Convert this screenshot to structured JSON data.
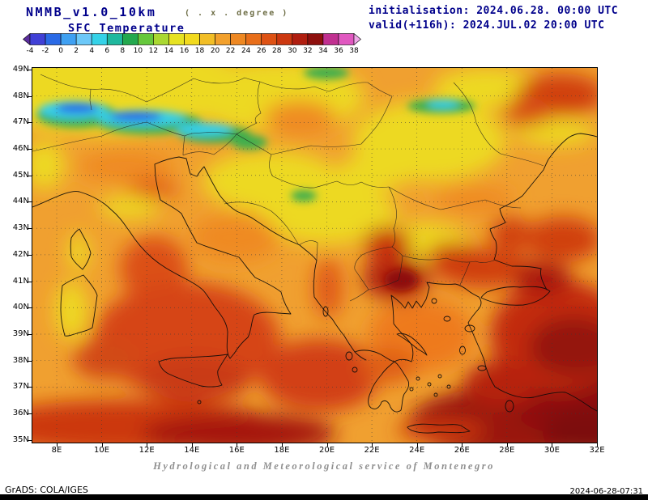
{
  "header": {
    "model": "NMMB_v1.0_10km",
    "grid_note": "( . x . degree )",
    "field": "SFC Temperature",
    "init_line": "initialisation: 2024.06.28. 00:00 UTC",
    "valid_line": "valid(+116h): 2024.JUL.02 20:00 UTC"
  },
  "colorbar": {
    "tick_labels": [
      "-4",
      "-2",
      "0",
      "2",
      "4",
      "6",
      "8",
      "10",
      "12",
      "14",
      "16",
      "18",
      "20",
      "22",
      "24",
      "26",
      "28",
      "30",
      "32",
      "34",
      "36",
      "38"
    ],
    "colors": [
      "#5b2d9e",
      "#4040d6",
      "#2a6ae6",
      "#3fa0f2",
      "#6cc8f8",
      "#35d2e8",
      "#1fb89e",
      "#23a84e",
      "#66c83c",
      "#aad832",
      "#e6e222",
      "#f2da1e",
      "#f2be26",
      "#f2a02c",
      "#ee8822",
      "#e86e1a",
      "#de5214",
      "#cc3810",
      "#b01e10",
      "#8e100e",
      "#c03090",
      "#e058c0",
      "#f0a8e8"
    ]
  },
  "map": {
    "lat_labels": [
      "49N",
      "48N",
      "47N",
      "46N",
      "45N",
      "44N",
      "43N",
      "42N",
      "41N",
      "40N",
      "39N",
      "38N",
      "37N",
      "36N",
      "35N"
    ],
    "lon_labels": [
      "8E",
      "10E",
      "12E",
      "14E",
      "16E",
      "18E",
      "20E",
      "22E",
      "24E",
      "26E",
      "28E",
      "30E",
      "32E"
    ]
  },
  "footer": {
    "service": "Hydrological and Meteorological service of Montenegro",
    "grads": "GrADS: COLA/IGES",
    "timestamp": "2024-06-28-07:31"
  }
}
